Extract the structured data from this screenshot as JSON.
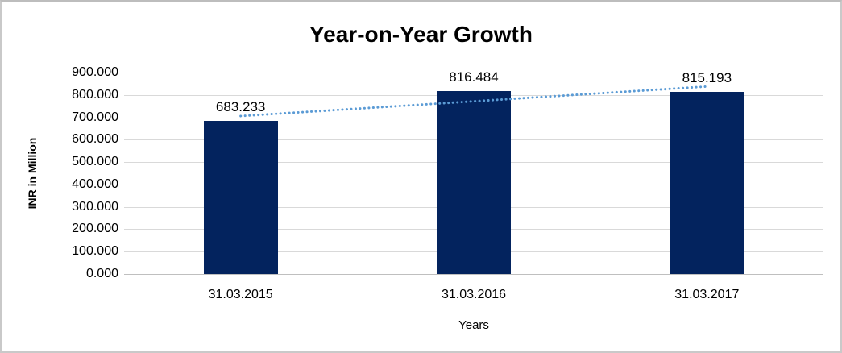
{
  "chart": {
    "title": "Year-on-Year Growth",
    "ylabel": "INR in Million",
    "xlabel": "Years"
  },
  "chart_data": {
    "type": "bar",
    "title": "Year-on-Year Growth",
    "xlabel": "Years",
    "ylabel": "INR in Million",
    "categories": [
      "31.03.2015",
      "31.03.2016",
      "31.03.2017"
    ],
    "values": [
      683.233,
      816.484,
      815.193
    ],
    "data_labels": [
      "683.233",
      "816.484",
      "815.193"
    ],
    "ylim": [
      0,
      900
    ],
    "ytick_step": 100,
    "ytick_labels": [
      "0.000",
      "100.000",
      "200.000",
      "300.000",
      "400.000",
      "500.000",
      "600.000",
      "700.000",
      "800.000",
      "900.000"
    ],
    "grid": true,
    "legend": false,
    "colors": {
      "bar": "#03235E",
      "trendline": "#5B9BD5",
      "gridline": "#D9D9D9",
      "axis_line": "#BFBFBF",
      "text": "#000000"
    },
    "trendline": {
      "type": "linear",
      "style": "dotted"
    }
  }
}
